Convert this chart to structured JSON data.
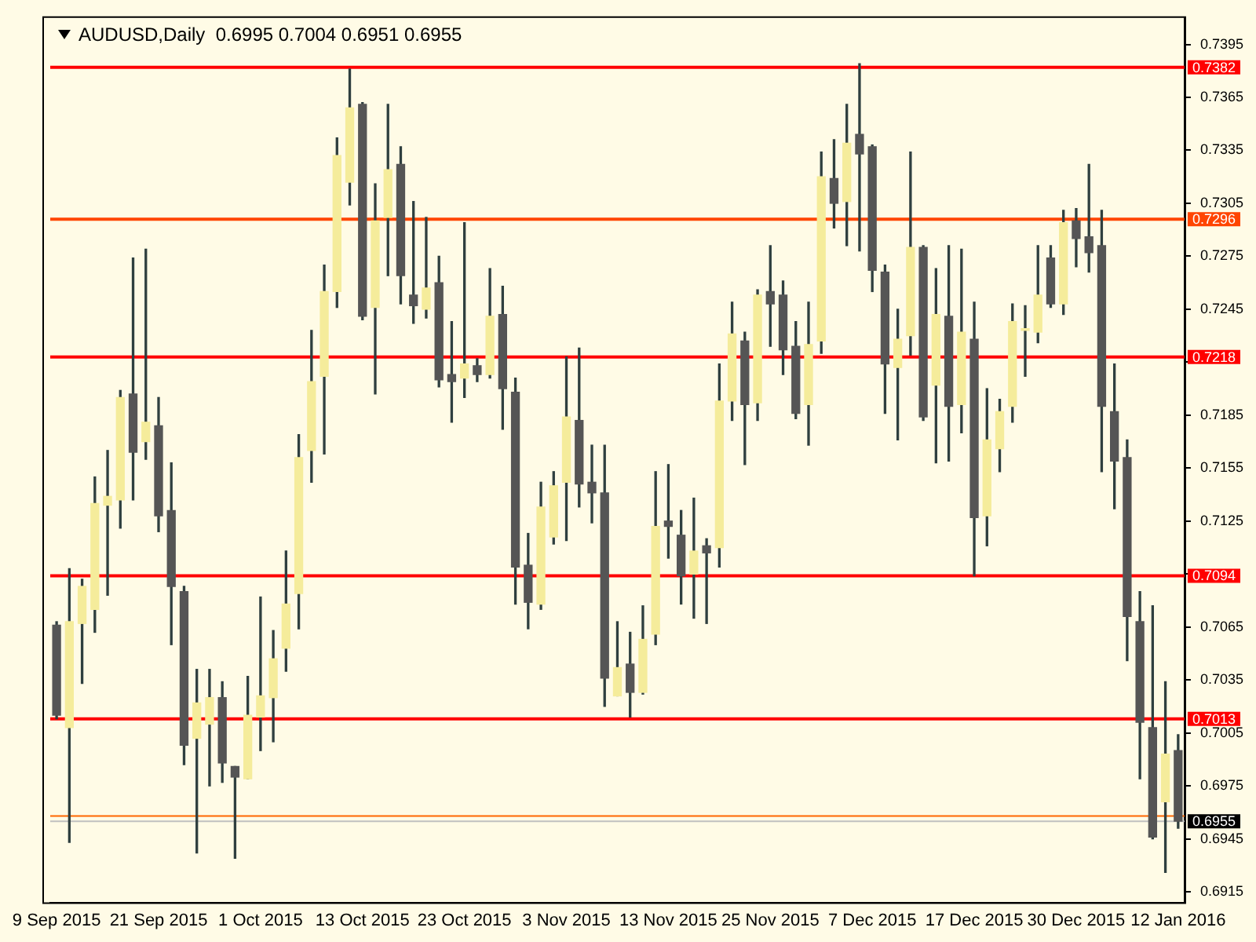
{
  "chart_data": {
    "type": "candlestick",
    "title": "AUDUSD,Daily  0.6995 0.7004 0.6951 0.6955",
    "categories": [
      "9 Sep 2015",
      null,
      null,
      null,
      null,
      null,
      null,
      null,
      "21 Sep 2015",
      null,
      null,
      null,
      null,
      null,
      null,
      null,
      "1 Oct 2015",
      null,
      null,
      null,
      null,
      null,
      null,
      null,
      "13 Oct 2015",
      null,
      null,
      null,
      null,
      null,
      null,
      null,
      "23 Oct 2015",
      null,
      null,
      null,
      null,
      null,
      null,
      null,
      "3 Nov 2015",
      null,
      null,
      null,
      null,
      null,
      null,
      null,
      "13 Nov 2015",
      null,
      null,
      null,
      null,
      null,
      null,
      null,
      "25 Nov 2015",
      null,
      null,
      null,
      null,
      null,
      null,
      null,
      "7 Dec 2015",
      null,
      null,
      null,
      null,
      null,
      null,
      null,
      "17 Dec 2015",
      null,
      null,
      null,
      null,
      null,
      null,
      null,
      "30 Dec 2015",
      null,
      null,
      null,
      null,
      null,
      null,
      null,
      "12 Jan 2016"
    ],
    "ohlc": [
      [
        0.7066,
        0.7068,
        0.7013,
        0.7015
      ],
      [
        0.7008,
        0.7098,
        0.6943,
        0.7068
      ],
      [
        0.7067,
        0.7092,
        0.7033,
        0.7088
      ],
      [
        0.7075,
        0.715,
        0.7062,
        0.7135
      ],
      [
        0.7134,
        0.7165,
        0.7083,
        0.7139
      ],
      [
        0.7137,
        0.7199,
        0.7121,
        0.7195
      ],
      [
        0.7197,
        0.7274,
        0.7137,
        0.7164
      ],
      [
        0.717,
        0.7279,
        0.716,
        0.7181
      ],
      [
        0.7179,
        0.7195,
        0.7119,
        0.7128
      ],
      [
        0.7131,
        0.7158,
        0.7055,
        0.7088
      ],
      [
        0.7085,
        0.7088,
        0.6987,
        0.6998
      ],
      [
        0.7002,
        0.7041,
        0.6937,
        0.7022
      ],
      [
        0.701,
        0.7041,
        0.6975,
        0.7025
      ],
      [
        0.7025,
        0.7034,
        0.6977,
        0.6988
      ],
      [
        0.6986,
        0.6986,
        0.6934,
        0.698
      ],
      [
        0.6979,
        0.7037,
        0.6979,
        0.7015
      ],
      [
        0.7014,
        0.7082,
        0.6995,
        0.7026
      ],
      [
        0.7025,
        0.7063,
        0.7,
        0.7047
      ],
      [
        0.7053,
        0.7108,
        0.704,
        0.7078
      ],
      [
        0.7084,
        0.7174,
        0.7064,
        0.7161
      ],
      [
        0.7165,
        0.7233,
        0.7147,
        0.7204
      ],
      [
        0.7207,
        0.727,
        0.7163,
        0.7255
      ],
      [
        0.7255,
        0.7342,
        0.7246,
        0.7332
      ],
      [
        0.7317,
        0.7381,
        0.7304,
        0.7359
      ],
      [
        0.7361,
        0.7362,
        0.7239,
        0.7241
      ],
      [
        0.7246,
        0.7316,
        0.7197,
        0.7295
      ],
      [
        0.7297,
        0.7361,
        0.7264,
        0.7324
      ],
      [
        0.7327,
        0.7337,
        0.7248,
        0.7264
      ],
      [
        0.7253,
        0.7306,
        0.7237,
        0.7247
      ],
      [
        0.7245,
        0.7297,
        0.724,
        0.7257
      ],
      [
        0.726,
        0.7275,
        0.7201,
        0.7205
      ],
      [
        0.7208,
        0.7238,
        0.7181,
        0.7204
      ],
      [
        0.7206,
        0.7294,
        0.7195,
        0.7214
      ],
      [
        0.7213,
        0.7217,
        0.7204,
        0.7208
      ],
      [
        0.7208,
        0.7268,
        0.7206,
        0.7241
      ],
      [
        0.7242,
        0.7258,
        0.7177,
        0.72
      ],
      [
        0.7198,
        0.7206,
        0.7078,
        0.7099
      ],
      [
        0.71,
        0.7118,
        0.7064,
        0.7079
      ],
      [
        0.7078,
        0.7147,
        0.7075,
        0.7133
      ],
      [
        0.7116,
        0.7153,
        0.7112,
        0.7145
      ],
      [
        0.7147,
        0.7218,
        0.7114,
        0.7184
      ],
      [
        0.7182,
        0.7223,
        0.7133,
        0.7146
      ],
      [
        0.7147,
        0.7168,
        0.7124,
        0.7141
      ],
      [
        0.7141,
        0.7168,
        0.702,
        0.7036
      ],
      [
        0.7026,
        0.7068,
        0.7026,
        0.7042
      ],
      [
        0.7044,
        0.7062,
        0.7014,
        0.7028
      ],
      [
        0.7028,
        0.7077,
        0.7027,
        0.7058
      ],
      [
        0.7061,
        0.7153,
        0.7055,
        0.7122
      ],
      [
        0.7125,
        0.7157,
        0.7104,
        0.7122
      ],
      [
        0.7117,
        0.7131,
        0.7078,
        0.7094
      ],
      [
        0.7095,
        0.7138,
        0.707,
        0.7108
      ],
      [
        0.7111,
        0.7115,
        0.7067,
        0.7107
      ],
      [
        0.711,
        0.7214,
        0.7099,
        0.7193
      ],
      [
        0.7193,
        0.7249,
        0.7182,
        0.7231
      ],
      [
        0.7227,
        0.7232,
        0.7157,
        0.7191
      ],
      [
        0.7192,
        0.7256,
        0.7182,
        0.7253
      ],
      [
        0.7255,
        0.7281,
        0.7224,
        0.7248
      ],
      [
        0.7253,
        0.7261,
        0.7208,
        0.7222
      ],
      [
        0.7224,
        0.7238,
        0.7183,
        0.7186
      ],
      [
        0.7191,
        0.7249,
        0.7168,
        0.7225
      ],
      [
        0.7227,
        0.7334,
        0.722,
        0.732
      ],
      [
        0.7319,
        0.7341,
        0.7291,
        0.7305
      ],
      [
        0.7306,
        0.7361,
        0.7281,
        0.7339
      ],
      [
        0.7344,
        0.7384,
        0.7278,
        0.7333
      ],
      [
        0.7337,
        0.7338,
        0.7255,
        0.7267
      ],
      [
        0.7266,
        0.727,
        0.7186,
        0.7214
      ],
      [
        0.7212,
        0.7245,
        0.7171,
        0.7228
      ],
      [
        0.723,
        0.7334,
        0.7219,
        0.728
      ],
      [
        0.728,
        0.7281,
        0.7182,
        0.7184
      ],
      [
        0.7202,
        0.7268,
        0.7158,
        0.7242
      ],
      [
        0.7241,
        0.7281,
        0.7159,
        0.719
      ],
      [
        0.7191,
        0.7279,
        0.7175,
        0.7232
      ],
      [
        0.7228,
        0.7249,
        0.7094,
        0.7127
      ],
      [
        0.7128,
        0.72,
        0.7111,
        0.7171
      ],
      [
        0.7166,
        0.7194,
        0.7153,
        0.7187
      ],
      [
        0.719,
        0.7248,
        0.7181,
        0.7238
      ],
      [
        0.7233,
        0.7247,
        0.7207,
        0.7234
      ],
      [
        0.7232,
        0.7281,
        0.7226,
        0.7253
      ],
      [
        0.7274,
        0.7281,
        0.7246,
        0.7248
      ],
      [
        0.7248,
        0.7301,
        0.7242,
        0.7294
      ],
      [
        0.7295,
        0.7302,
        0.7269,
        0.7285
      ],
      [
        0.7286,
        0.7327,
        0.7266,
        0.7277
      ],
      [
        0.7281,
        0.7301,
        0.7153,
        0.719
      ],
      [
        0.7187,
        0.7214,
        0.7132,
        0.7159
      ],
      [
        0.7161,
        0.7171,
        0.7046,
        0.7071
      ],
      [
        0.7068,
        0.7085,
        0.6979,
        0.7011
      ],
      [
        0.7008,
        0.7077,
        0.6945,
        0.6946
      ],
      [
        0.6966,
        0.7034,
        0.6926,
        0.6993
      ],
      [
        0.6995,
        0.7004,
        0.6951,
        0.6955
      ]
    ],
    "colors": [
      "#555555",
      "#f5ec9b",
      "#f5ec9b",
      "#f5ec9b",
      "#f5ec9b",
      "#f5ec9b",
      "#555555",
      "#f5ec9b",
      "#555555",
      "#555555",
      "#555555",
      "#f5ec9b",
      "#f5ec9b",
      "#555555",
      "#555555",
      "#f5ec9b",
      "#f5ec9b",
      "#f5ec9b",
      "#f5ec9b",
      "#f5ec9b",
      "#f5ec9b",
      "#f5ec9b",
      "#f5ec9b",
      "#f5ec9b",
      "#555555",
      "#f5ec9b",
      "#f5ec9b",
      "#555555",
      "#555555",
      "#f5ec9b",
      "#555555",
      "#555555",
      "#f5ec9b",
      "#555555",
      "#f5ec9b",
      "#555555",
      "#555555",
      "#555555",
      "#f5ec9b",
      "#f5ec9b",
      "#f5ec9b",
      "#555555",
      "#555555",
      "#555555",
      "#f5ec9b",
      "#555555",
      "#f5ec9b",
      "#f5ec9b",
      "#555555",
      "#555555",
      "#f5ec9b",
      "#555555",
      "#f5ec9b",
      "#f5ec9b",
      "#555555",
      "#f5ec9b",
      "#555555",
      "#555555",
      "#555555",
      "#f5ec9b",
      "#f5ec9b",
      "#555555",
      "#f5ec9b",
      "#555555",
      "#555555",
      "#555555",
      "#f5ec9b",
      "#f5ec9b",
      "#555555",
      "#f5ec9b",
      "#555555",
      "#f5ec9b",
      "#555555",
      "#f5ec9b",
      "#f5ec9b",
      "#f5ec9b",
      "#f5ec9b",
      "#f5ec9b",
      "#555555",
      "#f5ec9b",
      "#555555",
      "#555555",
      "#555555",
      "#555555",
      "#555555",
      "#555555",
      "#555555",
      "#f5ec9b",
      "#555555"
    ],
    "ylim": [
      0.6909,
      0.741
    ],
    "yticks": [
      0.6915,
      0.6945,
      0.6975,
      0.7005,
      0.7035,
      0.7065,
      {
        "value": 0.7095,
        "label": null
      },
      0.7125,
      0.7155,
      0.7185,
      {
        "value": 0.7215,
        "label": null
      },
      0.7245,
      0.7275,
      0.7305,
      0.7335,
      0.7365,
      0.7395
    ],
    "ref_lines": [
      {
        "axis": "y",
        "value": 0.7382,
        "label": "0.7382",
        "color": "#ff0000"
      },
      {
        "axis": "y",
        "value": 0.7296,
        "label": "0.7296",
        "color": "#ff4500"
      },
      {
        "axis": "y",
        "value": 0.7218,
        "label": "0.7218",
        "color": "#ff0000"
      },
      {
        "axis": "y",
        "value": 0.7094,
        "label": "0.7094",
        "color": "#ff0000"
      },
      {
        "axis": "y",
        "value": 0.7013,
        "label": "0.7013",
        "color": "#ff0000"
      },
      {
        "axis": "y",
        "value": 0.6958,
        "color": "#ff6600"
      },
      {
        "axis": "y",
        "value": 0.6955,
        "label": "0.6955",
        "color": "#c0c0c0"
      }
    ],
    "grid": false
  }
}
